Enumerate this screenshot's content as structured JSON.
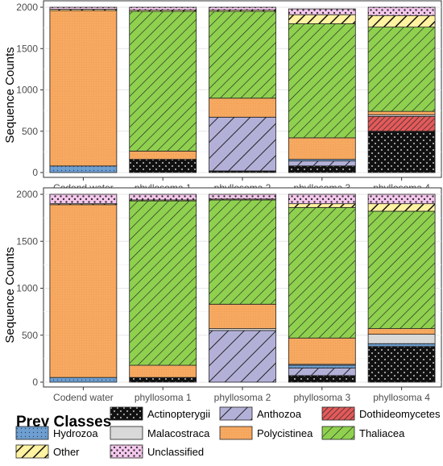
{
  "chart_data": [
    {
      "type": "bar",
      "stacked": true,
      "categories": [
        "Codend water",
        "phyllosoma 1",
        "phyllosoma 2",
        "phyllosoma 3",
        "phyllosoma 4"
      ],
      "ylabel": "Sequence Counts",
      "ylim": [
        0,
        2000
      ],
      "yticks": [
        0,
        500,
        1000,
        1500,
        2000
      ],
      "grid": true,
      "series": [
        {
          "name": "Actinopterygii",
          "values": [
            0,
            160,
            20,
            80,
            500
          ]
        },
        {
          "name": "Anthozoa",
          "values": [
            0,
            0,
            650,
            60,
            0
          ]
        },
        {
          "name": "Dothideomycetes",
          "values": [
            0,
            0,
            0,
            0,
            180
          ]
        },
        {
          "name": "Hydrozoa",
          "values": [
            80,
            0,
            0,
            20,
            0
          ]
        },
        {
          "name": "Malacostraca",
          "values": [
            0,
            0,
            0,
            0,
            20
          ]
        },
        {
          "name": "Polycistinea",
          "values": [
            1880,
            100,
            230,
            260,
            40
          ]
        },
        {
          "name": "Thaliacea",
          "values": [
            0,
            1690,
            1050,
            1380,
            1020
          ]
        },
        {
          "name": "Other",
          "values": [
            15,
            15,
            15,
            110,
            140
          ]
        },
        {
          "name": "Unclassified",
          "values": [
            25,
            35,
            35,
            70,
            100
          ]
        }
      ]
    },
    {
      "type": "bar",
      "stacked": true,
      "categories": [
        "Codend water",
        "phyllosoma 1",
        "phyllosoma 2",
        "phyllosoma 3",
        "phyllosoma 4"
      ],
      "ylabel": "Sequence Counts",
      "ylim": [
        0,
        2000
      ],
      "yticks": [
        0,
        500,
        1000,
        1500,
        2000
      ],
      "grid": true,
      "series": [
        {
          "name": "Actinopterygii",
          "values": [
            0,
            50,
            0,
            70,
            380
          ]
        },
        {
          "name": "Anthozoa",
          "values": [
            0,
            0,
            550,
            80,
            0
          ]
        },
        {
          "name": "Dothideomycetes",
          "values": [
            0,
            0,
            0,
            0,
            0
          ]
        },
        {
          "name": "Hydrozoa",
          "values": [
            50,
            0,
            0,
            30,
            30
          ]
        },
        {
          "name": "Malacostraca",
          "values": [
            0,
            0,
            20,
            10,
            100
          ]
        },
        {
          "name": "Polycistinea",
          "values": [
            1840,
            130,
            260,
            280,
            60
          ]
        },
        {
          "name": "Thaliacea",
          "values": [
            0,
            1750,
            1110,
            1390,
            1250
          ]
        },
        {
          "name": "Other",
          "values": [
            10,
            10,
            10,
            40,
            80
          ]
        },
        {
          "name": "Unclassified",
          "values": [
            100,
            60,
            50,
            100,
            100
          ]
        }
      ]
    }
  ],
  "legend": {
    "title": "Prey Classes",
    "items": [
      {
        "name": "Actinopterygii",
        "color": "#111111",
        "pattern": "dots-white"
      },
      {
        "name": "Anthozoa",
        "color": "#b3b0d8",
        "pattern": "diagonal"
      },
      {
        "name": "Dothideomycetes",
        "color": "#e35a5a",
        "pattern": "diagonal"
      },
      {
        "name": "Hydrozoa",
        "color": "#6f9fd0",
        "pattern": "dots"
      },
      {
        "name": "Malacostraca",
        "color": "#d9d9d9",
        "pattern": "none"
      },
      {
        "name": "Polycistinea",
        "color": "#f5a55a",
        "pattern": "fine-dots"
      },
      {
        "name": "Thaliacea",
        "color": "#8fd14f",
        "pattern": "diagonal"
      },
      {
        "name": "Other",
        "color": "#fff2a0",
        "pattern": "wide-diagonal"
      },
      {
        "name": "Unclassified",
        "color": "#f6c8ee",
        "pattern": "dots-dark"
      }
    ]
  }
}
